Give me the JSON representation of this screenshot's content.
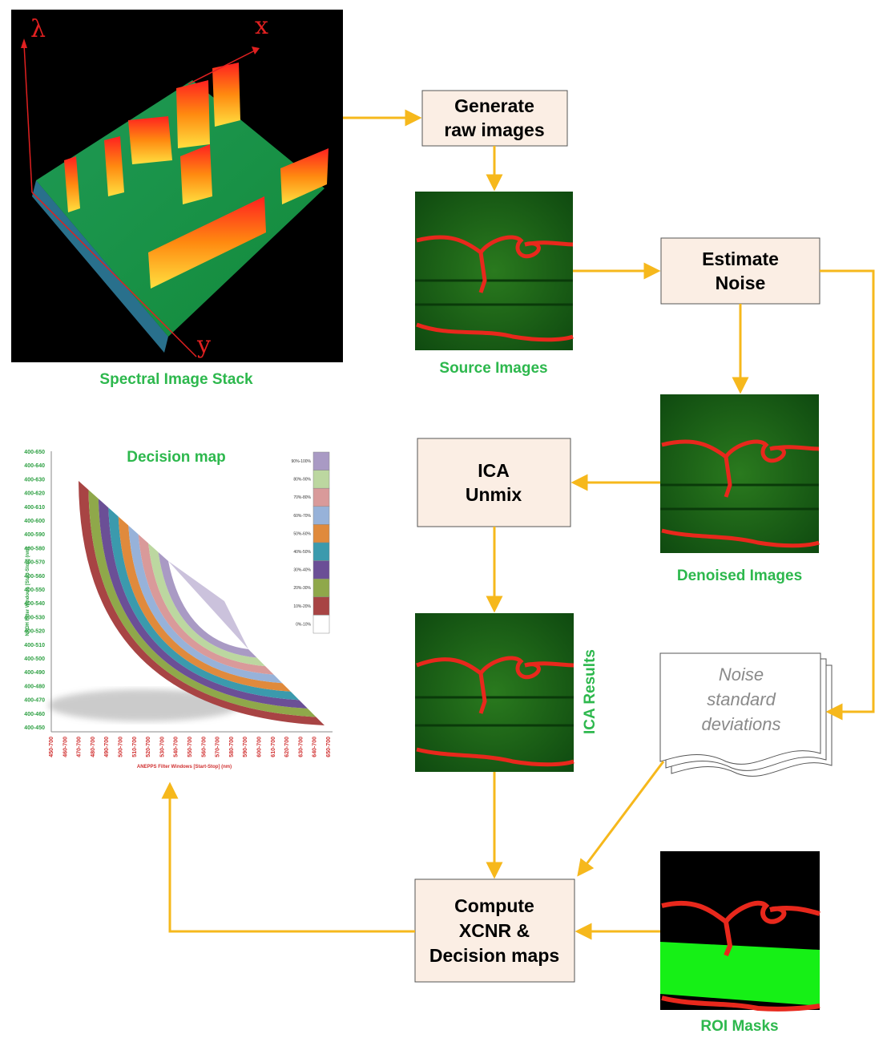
{
  "stack": {
    "caption": "Spectral Image Stack",
    "axis_lambda": "λ",
    "axis_x": "x",
    "axis_y": "y"
  },
  "boxes": {
    "generate": [
      "Generate",
      "raw images"
    ],
    "estimate": [
      "Estimate",
      "Noise"
    ],
    "ica": [
      "ICA",
      "Unmix"
    ],
    "compute": [
      "Compute",
      "XCNR &",
      "Decision maps"
    ]
  },
  "captions": {
    "source": "Source Images",
    "denoised": "Denoised Images",
    "ica_results": "ICA Results",
    "roi": "ROI Masks"
  },
  "noise_doc": [
    "Noise",
    "standard",
    "deviations"
  ],
  "decision_map": {
    "title": "Decision map",
    "y_axis_title": "NADH Filter Windows [Start-Stop] (nm)",
    "x_axis_title": "ANEPPS Filter Windows [Start-Stop] (nm)",
    "y_ticks": [
      "400-650",
      "400-640",
      "400-630",
      "400-620",
      "400-610",
      "400-600",
      "400-590",
      "400-580",
      "400-570",
      "400-560",
      "400-550",
      "400-540",
      "400-530",
      "400-520",
      "400-510",
      "400-500",
      "400-490",
      "400-480",
      "400-470",
      "400-460",
      "400-450"
    ],
    "x_ticks": [
      "450-700",
      "460-700",
      "470-700",
      "480-700",
      "490-700",
      "500-700",
      "510-700",
      "520-700",
      "530-700",
      "540-700",
      "550-700",
      "560-700",
      "570-700",
      "580-700",
      "590-700",
      "600-700",
      "610-700",
      "620-700",
      "630-700",
      "640-700",
      "650-700"
    ],
    "legend": [
      {
        "label": "90%-100%",
        "color": "#a99ac4"
      },
      {
        "label": "80%-90%",
        "color": "#bcd7a0"
      },
      {
        "label": "70%-80%",
        "color": "#d99a9a"
      },
      {
        "label": "60%-70%",
        "color": "#97b2d9"
      },
      {
        "label": "50%-60%",
        "color": "#e08a3c"
      },
      {
        "label": "40%-50%",
        "color": "#3b9aad"
      },
      {
        "label": "30%-40%",
        "color": "#6b4f96"
      },
      {
        "label": "20%-30%",
        "color": "#8fa84a"
      },
      {
        "label": "10%-20%",
        "color": "#a84444"
      },
      {
        "label": "0%-10%",
        "color": "#ffffff"
      }
    ]
  },
  "colors": {
    "arrow": "#f6b81c",
    "box_fill": "#fbeee4",
    "caption": "#2db84d",
    "vessel": "#e8281c",
    "tissue": "#1e7a1e",
    "roi_green": "#16f016"
  }
}
